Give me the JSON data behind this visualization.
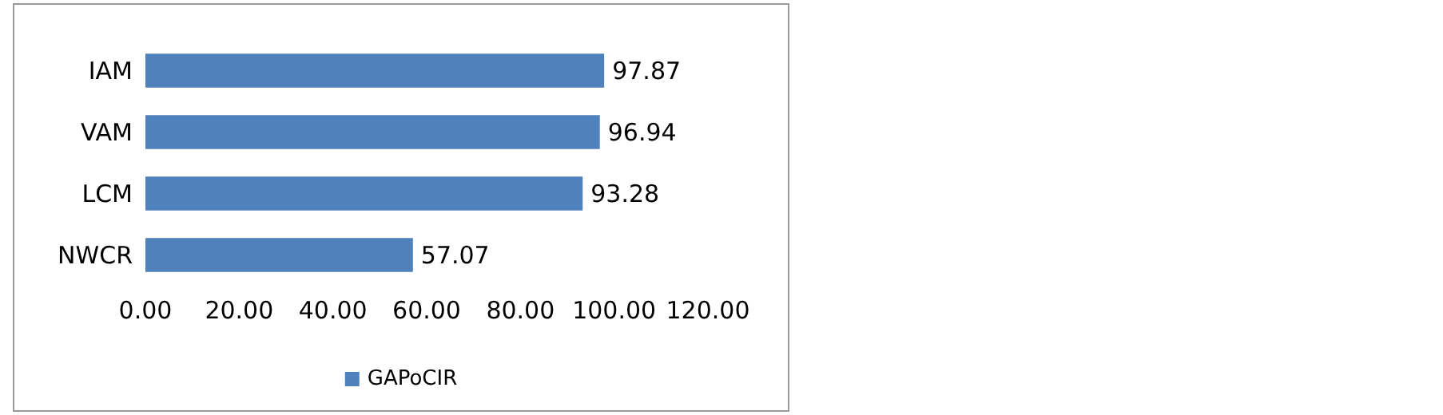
{
  "chart_data": {
    "type": "bar",
    "orientation": "horizontal",
    "categories": [
      "IAM",
      "VAM",
      "LCM",
      "NWCR"
    ],
    "series": [
      {
        "name": "GAPoCIR",
        "color": "#4f81bd",
        "values": [
          97.87,
          96.94,
          93.28,
          57.07
        ]
      }
    ],
    "xlim": [
      0,
      120
    ],
    "xticks": [
      {
        "value": 0,
        "label": "0.00"
      },
      {
        "value": 20,
        "label": "20.00"
      },
      {
        "value": 40,
        "label": "40.00"
      },
      {
        "value": 60,
        "label": "60.00"
      },
      {
        "value": 80,
        "label": "80.00"
      },
      {
        "value": 100,
        "label": "100.00"
      },
      {
        "value": 120,
        "label": "120.00"
      }
    ],
    "data_labels": true,
    "grid": false,
    "legend": "bottom"
  }
}
